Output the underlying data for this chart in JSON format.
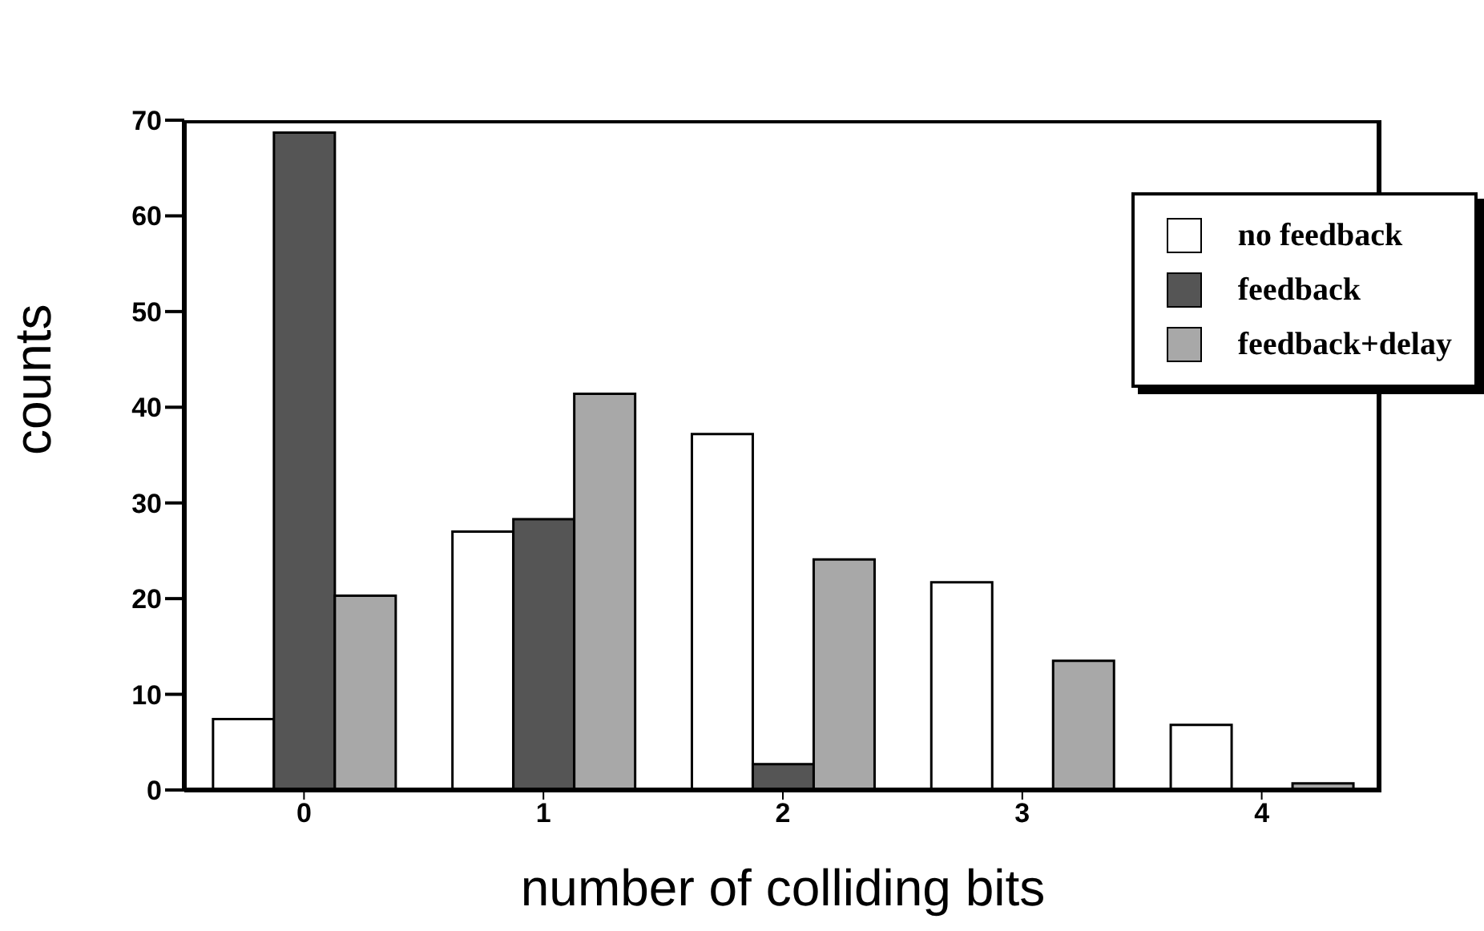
{
  "chart_data": {
    "type": "bar",
    "xlabel": "number of colliding bits",
    "ylabel": "counts",
    "categories": [
      "0",
      "1",
      "2",
      "3",
      "4"
    ],
    "series": [
      {
        "name": "no feedback",
        "color": "#ffffff",
        "values": [
          7.4,
          27.0,
          37.2,
          21.7,
          6.8
        ]
      },
      {
        "name": "feedback",
        "color": "#555555",
        "values": [
          68.7,
          28.3,
          2.7,
          0,
          0
        ]
      },
      {
        "name": "feedback+delay",
        "color": "#a8a8a8",
        "values": [
          20.3,
          41.4,
          24.1,
          13.5,
          0.7
        ]
      }
    ],
    "ylim": [
      0,
      70
    ],
    "yticks": [
      0,
      10,
      20,
      30,
      40,
      50,
      60,
      70
    ],
    "grid": false,
    "legend": "top right"
  }
}
